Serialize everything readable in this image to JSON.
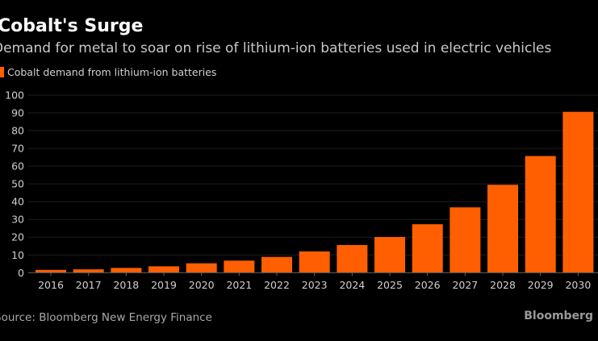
{
  "header": {
    "title": "Cobalt's Surge",
    "subtitle": "Demand for metal to soar on rise of lithium-ion batteries used in electric vehicles"
  },
  "footer": {
    "source": "Source: Bloomberg New Energy Finance",
    "logo": "Bloomberg"
  },
  "chart_data": {
    "type": "bar",
    "title": "Cobalt's Surge",
    "subtitle": "Demand for metal to soar on rise of lithium-ion batteries used in electric vehicles",
    "xlabel": "",
    "ylabel": "",
    "ylim": [
      0,
      100
    ],
    "yticks": [
      0,
      10,
      20,
      30,
      40,
      50,
      60,
      70,
      80,
      90,
      100
    ],
    "grid": true,
    "legend_position": "top-left",
    "categories": [
      "2016",
      "2017",
      "2018",
      "2019",
      "2020",
      "2021",
      "2022",
      "2023",
      "2024",
      "2025",
      "2026",
      "2027",
      "2028",
      "2029",
      "2030"
    ],
    "series": [
      {
        "name": "Cobalt demand from lithium-ion batteries",
        "color": "#ff5f00",
        "values": [
          1.6,
          1.9,
          2.7,
          3.6,
          5.3,
          6.8,
          8.9,
          12.0,
          15.6,
          20.1,
          27.3,
          36.8,
          49.5,
          65.7,
          90.6
        ]
      }
    ]
  }
}
